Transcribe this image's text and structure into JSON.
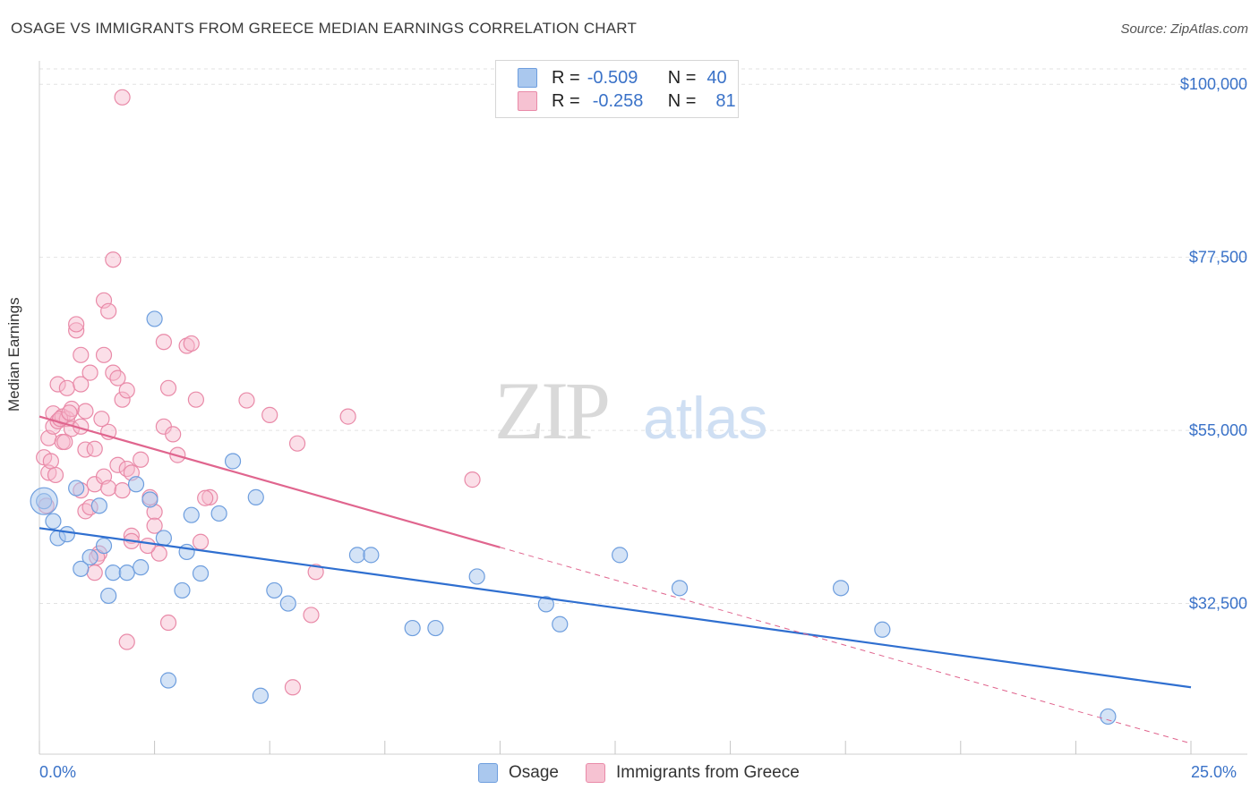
{
  "title": "OSAGE VS IMMIGRANTS FROM GREECE MEDIAN EARNINGS CORRELATION CHART",
  "source": "Source: ZipAtlas.com",
  "watermark": {
    "zip": "ZIP",
    "atlas": "atlas"
  },
  "legend": {
    "osage": {
      "r_label": "R =",
      "r_value": "-0.509",
      "n_label": "N =",
      "n_value": "40"
    },
    "greece": {
      "r_label": "R =",
      "r_value": "-0.258",
      "n_label": "N =",
      "n_value": "81"
    }
  },
  "bottom_legend": {
    "osage": "Osage",
    "greece": "Immigrants from Greece"
  },
  "colors": {
    "osage_fill": "#aac8ee",
    "osage_stroke": "#6e9ede",
    "osage_line": "#2f6fd0",
    "greece_fill": "#f6b8cc",
    "greece_stroke": "#e98aa8",
    "greece_line": "#e0658e",
    "tick_label": "#3a72c8",
    "grid": "#e2e2e2"
  },
  "chart_data": {
    "type": "scatter",
    "title": "OSAGE VS IMMIGRANTS FROM GREECE MEDIAN EARNINGS CORRELATION CHART",
    "ylabel": "Median Earnings",
    "xlabel": "",
    "xlim": [
      0,
      25
    ],
    "ylim": [
      15000,
      102000
    ],
    "x_tick_labels": [
      "0.0%",
      "25.0%"
    ],
    "y_ticks": [
      32500,
      55000,
      77500,
      100000
    ],
    "y_tick_labels": [
      "$32,500",
      "$55,000",
      "$77,500",
      "$100,000"
    ],
    "grid": true,
    "series": [
      {
        "name": "Osage",
        "trend": {
          "x": [
            0,
            25
          ],
          "y": [
            42300,
            21600
          ]
        },
        "points": [
          [
            0.1,
            45800
          ],
          [
            0.3,
            43200
          ],
          [
            0.4,
            41000
          ],
          [
            0.6,
            41500
          ],
          [
            0.8,
            47500
          ],
          [
            0.9,
            37000
          ],
          [
            1.1,
            38500
          ],
          [
            1.3,
            45200
          ],
          [
            1.4,
            40000
          ],
          [
            1.5,
            33500
          ],
          [
            1.6,
            36500
          ],
          [
            1.9,
            36500
          ],
          [
            2.1,
            48000
          ],
          [
            2.2,
            37200
          ],
          [
            2.4,
            46000
          ],
          [
            2.5,
            69500
          ],
          [
            2.7,
            41000
          ],
          [
            2.8,
            22500
          ],
          [
            3.1,
            34200
          ],
          [
            3.2,
            39200
          ],
          [
            3.3,
            44000
          ],
          [
            3.5,
            36400
          ],
          [
            3.9,
            44200
          ],
          [
            4.2,
            51000
          ],
          [
            4.7,
            46300
          ],
          [
            4.8,
            20500
          ],
          [
            5.1,
            34200
          ],
          [
            5.4,
            32500
          ],
          [
            6.9,
            38800
          ],
          [
            7.2,
            38800
          ],
          [
            8.1,
            29300
          ],
          [
            8.6,
            29300
          ],
          [
            9.5,
            36000
          ],
          [
            11.0,
            32400
          ],
          [
            11.3,
            29800
          ],
          [
            12.6,
            38800
          ],
          [
            13.9,
            34500
          ],
          [
            17.4,
            34500
          ],
          [
            18.3,
            29100
          ],
          [
            23.2,
            17800
          ]
        ]
      },
      {
        "name": "Immigrants from Greece",
        "trend": {
          "x": [
            0,
            10
          ],
          "y": [
            56800,
            39800
          ]
        },
        "trend_dashed": {
          "x": [
            10,
            25
          ],
          "y": [
            39800,
            14300
          ]
        },
        "points": [
          [
            0.1,
            51500
          ],
          [
            0.2,
            49500
          ],
          [
            0.2,
            54000
          ],
          [
            0.3,
            55500
          ],
          [
            0.3,
            57200
          ],
          [
            0.4,
            56200
          ],
          [
            0.4,
            61000
          ],
          [
            0.5,
            56800
          ],
          [
            0.5,
            53500
          ],
          [
            0.6,
            56500
          ],
          [
            0.6,
            60500
          ],
          [
            0.7,
            55200
          ],
          [
            0.7,
            57800
          ],
          [
            0.8,
            68000
          ],
          [
            0.9,
            64800
          ],
          [
            0.9,
            61000
          ],
          [
            0.9,
            55500
          ],
          [
            0.9,
            47200
          ],
          [
            0.8,
            68800
          ],
          [
            1.0,
            57500
          ],
          [
            1.0,
            52500
          ],
          [
            1.0,
            44500
          ],
          [
            1.1,
            62500
          ],
          [
            1.1,
            45000
          ],
          [
            1.2,
            52600
          ],
          [
            1.2,
            48000
          ],
          [
            1.3,
            39000
          ],
          [
            1.2,
            36500
          ],
          [
            1.4,
            49000
          ],
          [
            1.4,
            71900
          ],
          [
            1.5,
            70500
          ],
          [
            1.4,
            64800
          ],
          [
            1.5,
            54800
          ],
          [
            1.5,
            47500
          ],
          [
            1.6,
            77200
          ],
          [
            1.6,
            62500
          ],
          [
            1.7,
            61800
          ],
          [
            1.7,
            50500
          ],
          [
            1.8,
            59000
          ],
          [
            1.8,
            47200
          ],
          [
            1.9,
            60200
          ],
          [
            1.9,
            50000
          ],
          [
            2.0,
            49500
          ],
          [
            2.0,
            41300
          ],
          [
            2.0,
            40600
          ],
          [
            1.8,
            98300
          ],
          [
            1.9,
            27500
          ],
          [
            2.2,
            51200
          ],
          [
            2.4,
            46300
          ],
          [
            2.5,
            44400
          ],
          [
            2.5,
            42600
          ],
          [
            2.6,
            39000
          ],
          [
            2.7,
            55500
          ],
          [
            2.7,
            66500
          ],
          [
            2.8,
            60500
          ],
          [
            2.8,
            30000
          ],
          [
            2.9,
            54500
          ],
          [
            3.0,
            51800
          ],
          [
            3.2,
            66000
          ],
          [
            3.3,
            66300
          ],
          [
            3.4,
            59000
          ],
          [
            3.5,
            40500
          ],
          [
            3.7,
            46300
          ],
          [
            4.5,
            58900
          ],
          [
            5.0,
            57000
          ],
          [
            5.5,
            21600
          ],
          [
            5.6,
            53300
          ],
          [
            5.9,
            31000
          ],
          [
            6.0,
            36600
          ],
          [
            6.7,
            56800
          ],
          [
            9.4,
            48600
          ],
          [
            0.15,
            45200
          ],
          [
            0.25,
            51000
          ],
          [
            0.35,
            49200
          ],
          [
            0.45,
            56500
          ],
          [
            0.55,
            53500
          ],
          [
            0.65,
            57300
          ],
          [
            1.25,
            38500
          ],
          [
            1.35,
            56500
          ],
          [
            2.35,
            40000
          ],
          [
            3.6,
            46200
          ]
        ]
      }
    ]
  }
}
